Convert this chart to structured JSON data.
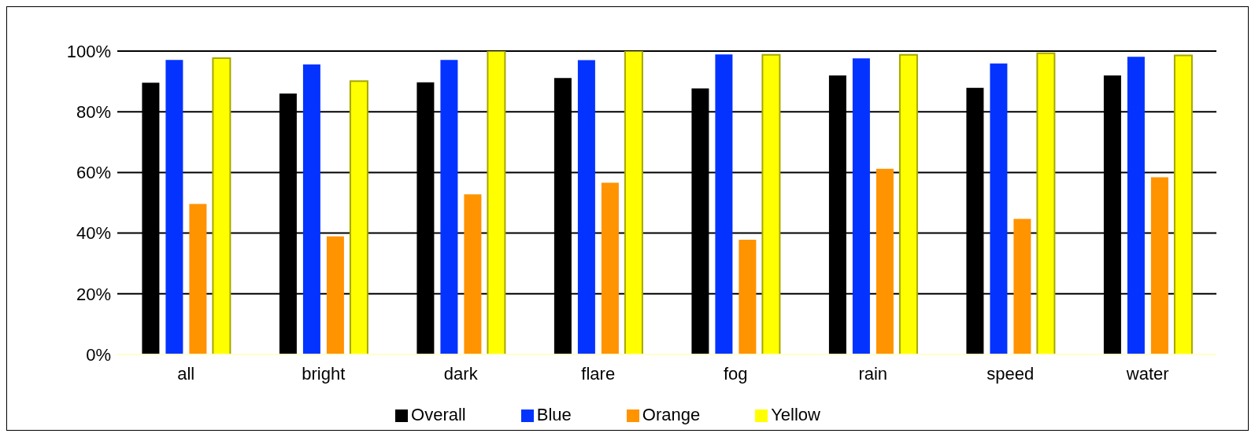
{
  "chart_data": {
    "type": "bar",
    "categories": [
      "all",
      "bright",
      "dark",
      "flare",
      "fog",
      "rain",
      "speed",
      "water"
    ],
    "series": [
      {
        "name": "Overall",
        "color": "#000000",
        "values": [
          89.6,
          86.0,
          89.7,
          91.1,
          87.7,
          92.0,
          87.9,
          92.0
        ]
      },
      {
        "name": "Blue",
        "color": "#0433ff",
        "values": [
          97.1,
          95.6,
          97.1,
          97.0,
          98.9,
          97.6,
          95.9,
          98.1
        ]
      },
      {
        "name": "Orange",
        "color": "#ff9300",
        "values": [
          49.6,
          38.9,
          52.8,
          56.6,
          37.8,
          61.2,
          44.7,
          58.4
        ]
      },
      {
        "name": "Yellow",
        "color": "#ffff00",
        "values": [
          97.7,
          90.1,
          100,
          100,
          98.8,
          98.8,
          99.3,
          98.6
        ]
      }
    ],
    "ylim": [
      0,
      100
    ],
    "yticks": [
      {
        "value": 0,
        "label": "0%"
      },
      {
        "value": 20,
        "label": "20%"
      },
      {
        "value": 40,
        "label": "40%"
      },
      {
        "value": 60,
        "label": "60%"
      },
      {
        "value": 80,
        "label": "80%"
      },
      {
        "value": 100,
        "label": "100%"
      }
    ],
    "grid": "y",
    "legend": "bottom"
  }
}
